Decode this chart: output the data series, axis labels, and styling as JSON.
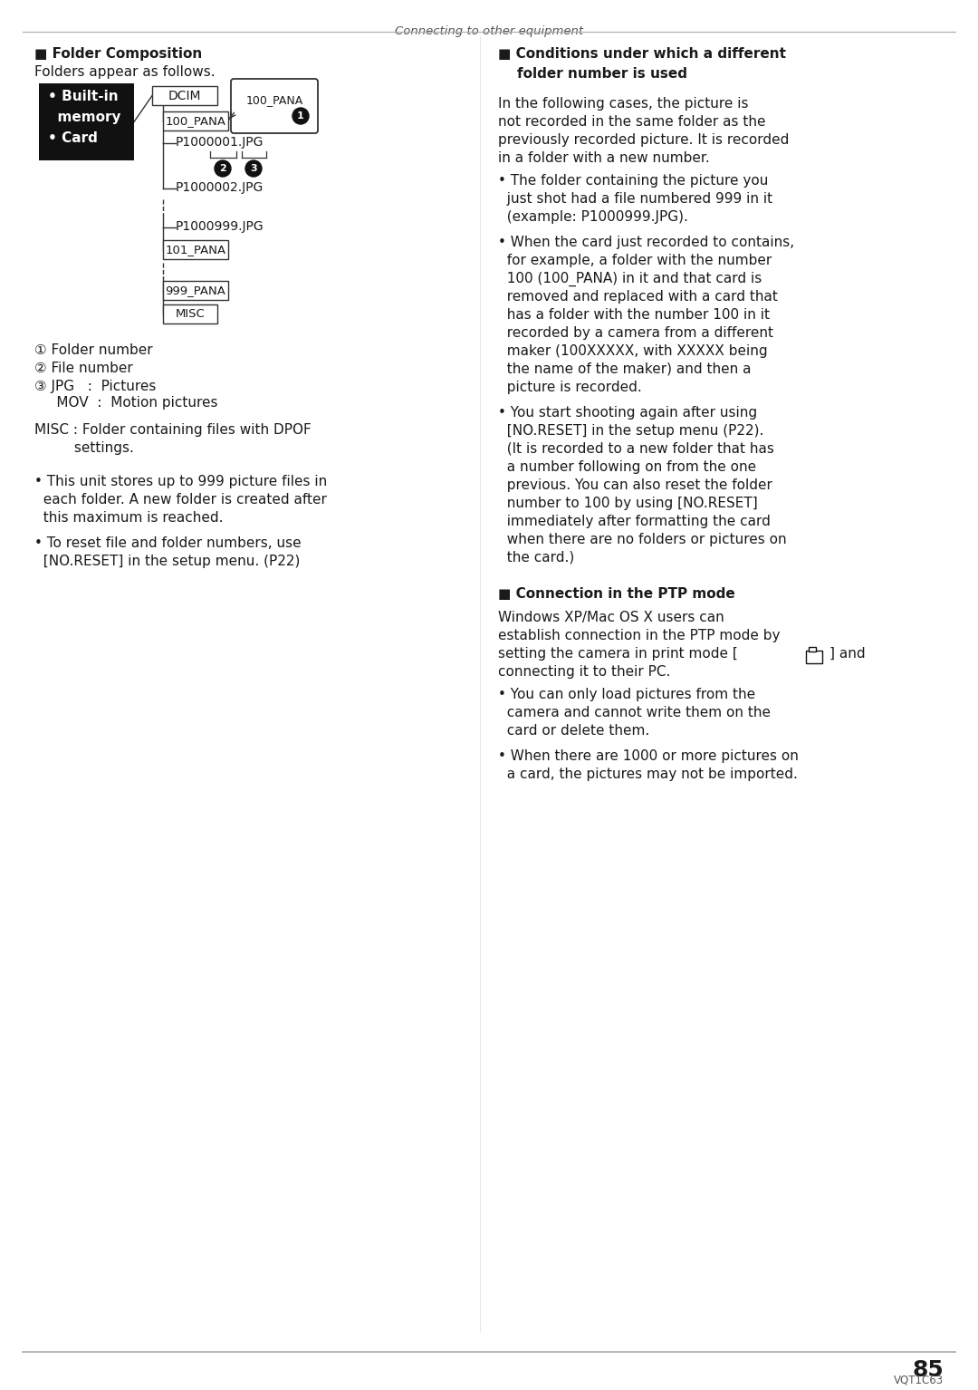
{
  "bg_color": "#ffffff",
  "text_color": "#1a1a1a",
  "page_number": "85",
  "vqt": "VQT1C63",
  "header_text": "Connecting to other equipment",
  "left_section_title": "■ Folder Composition",
  "left_subtitle": "Folders appear as follows.",
  "callout_label": "100_PANA",
  "legend_1": "① Folder number",
  "legend_2": "② File number",
  "legend_3": "③ JPG   :  Pictures",
  "legend_3b": "     MOV  :  Motion pictures",
  "misc_note_line1": "MISC : Folder containing files with DPOF",
  "misc_note_line2": "         settings.",
  "bullet1_left_line1": "• This unit stores up to 999 picture files in",
  "bullet1_left_line2": "  each folder. A new folder is created after",
  "bullet1_left_line3": "  this maximum is reached.",
  "bullet2_left_line1": "• To reset file and folder numbers, use",
  "bullet2_left_line2": "  [NO.RESET] in the setup menu. (P22)",
  "right_title_line1": "■ Conditions under which a different",
  "right_title_line2": "    folder number is used",
  "right_intro_line1": "In the following cases, the picture is",
  "right_intro_line2": "not recorded in the same folder as the",
  "right_intro_line3": "previously recorded picture. It is recorded",
  "right_intro_line4": "in a folder with a new number.",
  "rb1_line1": "• The folder containing the picture you",
  "rb1_line2": "  just shot had a file numbered 999 in it",
  "rb1_line3": "  (example: P1000999.JPG).",
  "rb2_line1": "• When the card just recorded to contains,",
  "rb2_line2": "  for example, a folder with the number",
  "rb2_line3": "  100 (100_PANA) in it and that card is",
  "rb2_line4": "  removed and replaced with a card that",
  "rb2_line5": "  has a folder with the number 100 in it",
  "rb2_line6": "  recorded by a camera from a different",
  "rb2_line7": "  maker (100XXXXX, with XXXXX being",
  "rb2_line8": "  the name of the maker) and then a",
  "rb2_line9": "  picture is recorded.",
  "rb3_line1": "• You start shooting again after using",
  "rb3_line2": "  [NO.RESET] in the setup menu (P22).",
  "rb3_line3": "  (It is recorded to a new folder that has",
  "rb3_line4": "  a number following on from the one",
  "rb3_line5": "  previous. You can also reset the folder",
  "rb3_line6": "  number to 100 by using [NO.RESET]",
  "rb3_line7": "  immediately after formatting the card",
  "rb3_line8": "  when there are no folders or pictures on",
  "rb3_line9": "  the card.)",
  "rs2_title": "■ Connection in the PTP mode",
  "rs2_line1": "Windows XP/Mac OS X users can",
  "rs2_line2": "establish connection in the PTP mode by",
  "rs2_line3": "setting the camera in print mode [",
  "rs2_line3b": "] and",
  "rs2_line4": "connecting it to their PC.",
  "rs2_b1_line1": "• You can only load pictures from the",
  "rs2_b1_line2": "  camera and cannot write them on the",
  "rs2_b1_line3": "  card or delete them.",
  "rs2_b2_line1": "• When there are 1000 or more pictures on",
  "rs2_b2_line2": "  a card, the pictures may not be imported."
}
